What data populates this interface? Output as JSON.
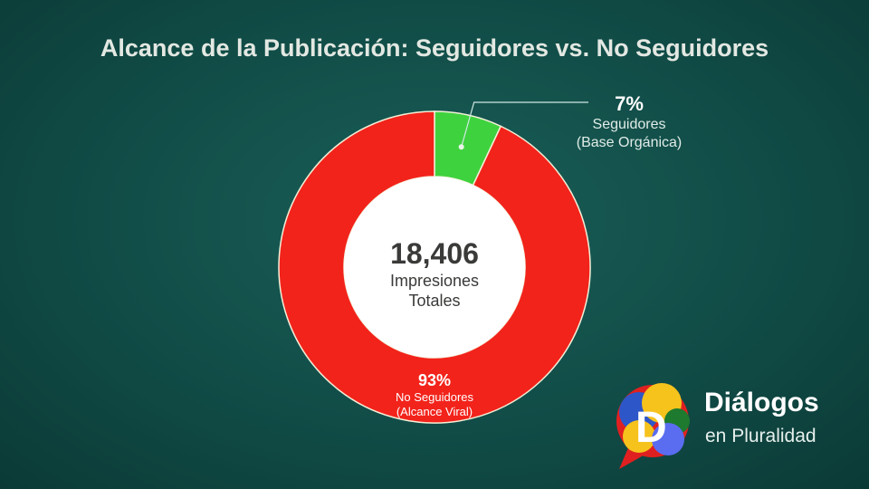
{
  "chart_data": {
    "type": "pie",
    "title": "Alcance de la Publicación: Seguidores vs. No Seguidores",
    "center": {
      "value": "18,406",
      "label_line1": "Impresiones",
      "label_line2": "Totales"
    },
    "slices": [
      {
        "name": "Seguidores",
        "detail": "(Base Orgánica)",
        "value": 7,
        "label": "7%",
        "color": "#3fd23f"
      },
      {
        "name": "No Seguidores",
        "detail": "(Alcance Viral)",
        "value": 93,
        "label": "93%",
        "color": "#f2231b"
      }
    ]
  },
  "brand": {
    "name": "Diálogos",
    "tagline": "en Pluralidad",
    "logo_letter": "D"
  }
}
